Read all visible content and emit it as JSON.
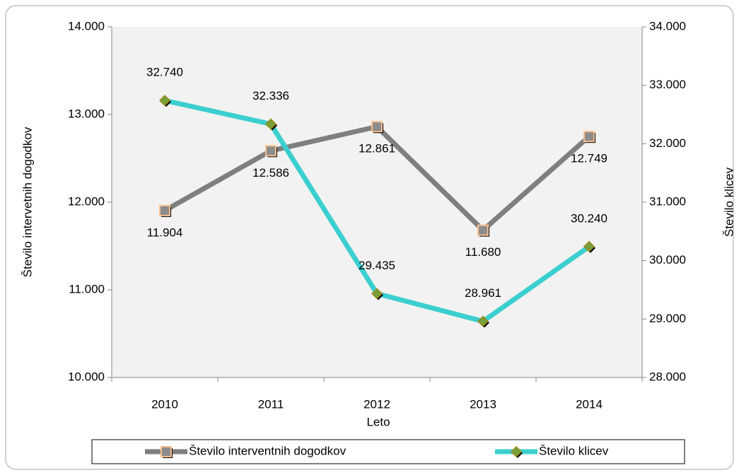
{
  "chart_data": {
    "type": "line",
    "categories": [
      "2010",
      "2011",
      "2012",
      "2013",
      "2014"
    ],
    "x_label": "Leto",
    "y_label": "Število intervetnih dogodkov",
    "y2_label": "Število klicev",
    "ylim": [
      10000,
      14000
    ],
    "yticks": [
      {
        "value": 10000,
        "label": "10.000"
      },
      {
        "value": 11000,
        "label": "11.000"
      },
      {
        "value": 12000,
        "label": "12.000"
      },
      {
        "value": 13000,
        "label": "13.000"
      },
      {
        "value": 14000,
        "label": "14.000"
      }
    ],
    "y2lim": [
      28000,
      34000
    ],
    "y2ticks": [
      {
        "value": 28000,
        "label": "28.000"
      },
      {
        "value": 29000,
        "label": "29.000"
      },
      {
        "value": 30000,
        "label": "30.000"
      },
      {
        "value": 31000,
        "label": "31.000"
      },
      {
        "value": 32000,
        "label": "32.000"
      },
      {
        "value": 33000,
        "label": "33.000"
      },
      {
        "value": 34000,
        "label": "34.000"
      }
    ],
    "legend": "bottom",
    "series": [
      {
        "name": "Število interventnih dogodkov",
        "color": "#7f7f7f",
        "axis": "y",
        "values": [
          11904,
          12586,
          12861,
          11680,
          12749
        ],
        "value_labels": [
          "11.904",
          "12.586",
          "12.861",
          "11.680",
          "12.749"
        ]
      },
      {
        "name": "Število klicev",
        "color": "#3ccfcf",
        "axis": "y2",
        "values": [
          32740,
          32336,
          29435,
          28961,
          30240
        ],
        "value_labels": [
          "32.740",
          "32.336",
          "29.435",
          "28.961",
          "30.240"
        ]
      }
    ]
  }
}
